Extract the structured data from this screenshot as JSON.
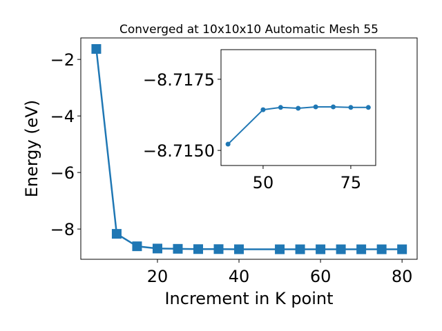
{
  "chart_data": [
    {
      "type": "line",
      "title": "Converged at 10x10x10 Automatic Mesh 55",
      "x_label": "Increment in K point",
      "y_label": "Energy (eV)",
      "x": [
        5,
        10,
        15,
        20,
        25,
        30,
        35,
        40,
        50,
        55,
        60,
        65,
        70,
        75,
        80
      ],
      "series": [
        {
          "color": "#1f77b4",
          "marker": "square",
          "values": [
            -1.63,
            -8.17,
            -8.61,
            -8.69,
            -8.7,
            -8.71,
            -8.71,
            -8.71522,
            -8.71643,
            -8.71651,
            -8.71648,
            -8.71653,
            -8.71653,
            -8.71651,
            -8.71651
          ]
        }
      ],
      "xlim": [
        1.2,
        83.7
      ],
      "xticks": [
        20,
        40,
        60,
        80
      ],
      "ylim": [
        -9.07,
        -1.24
      ],
      "yticks": [
        {
          "value": -8,
          "label": "−8"
        },
        {
          "value": -6,
          "label": "−6"
        },
        {
          "value": -4,
          "label": "−4"
        },
        {
          "value": -2,
          "label": "−2"
        }
      ]
    },
    {
      "type": "line",
      "x": [
        40,
        50,
        55,
        60,
        65,
        70,
        75,
        80
      ],
      "series": [
        {
          "color": "#1f77b4",
          "marker": "circle",
          "values": [
            -8.71522,
            -8.71643,
            -8.71651,
            -8.71648,
            -8.71653,
            -8.71653,
            -8.71651,
            -8.71651
          ]
        }
      ],
      "xlim": [
        38.0,
        82.1
      ],
      "xticks": [
        50,
        75
      ],
      "ylim": [
        -8.71447,
        -8.71854
      ],
      "yticks": [
        {
          "value": -8.715,
          "label": "−8.7150"
        },
        {
          "value": -8.7175,
          "label": "−8.7175"
        }
      ]
    }
  ]
}
